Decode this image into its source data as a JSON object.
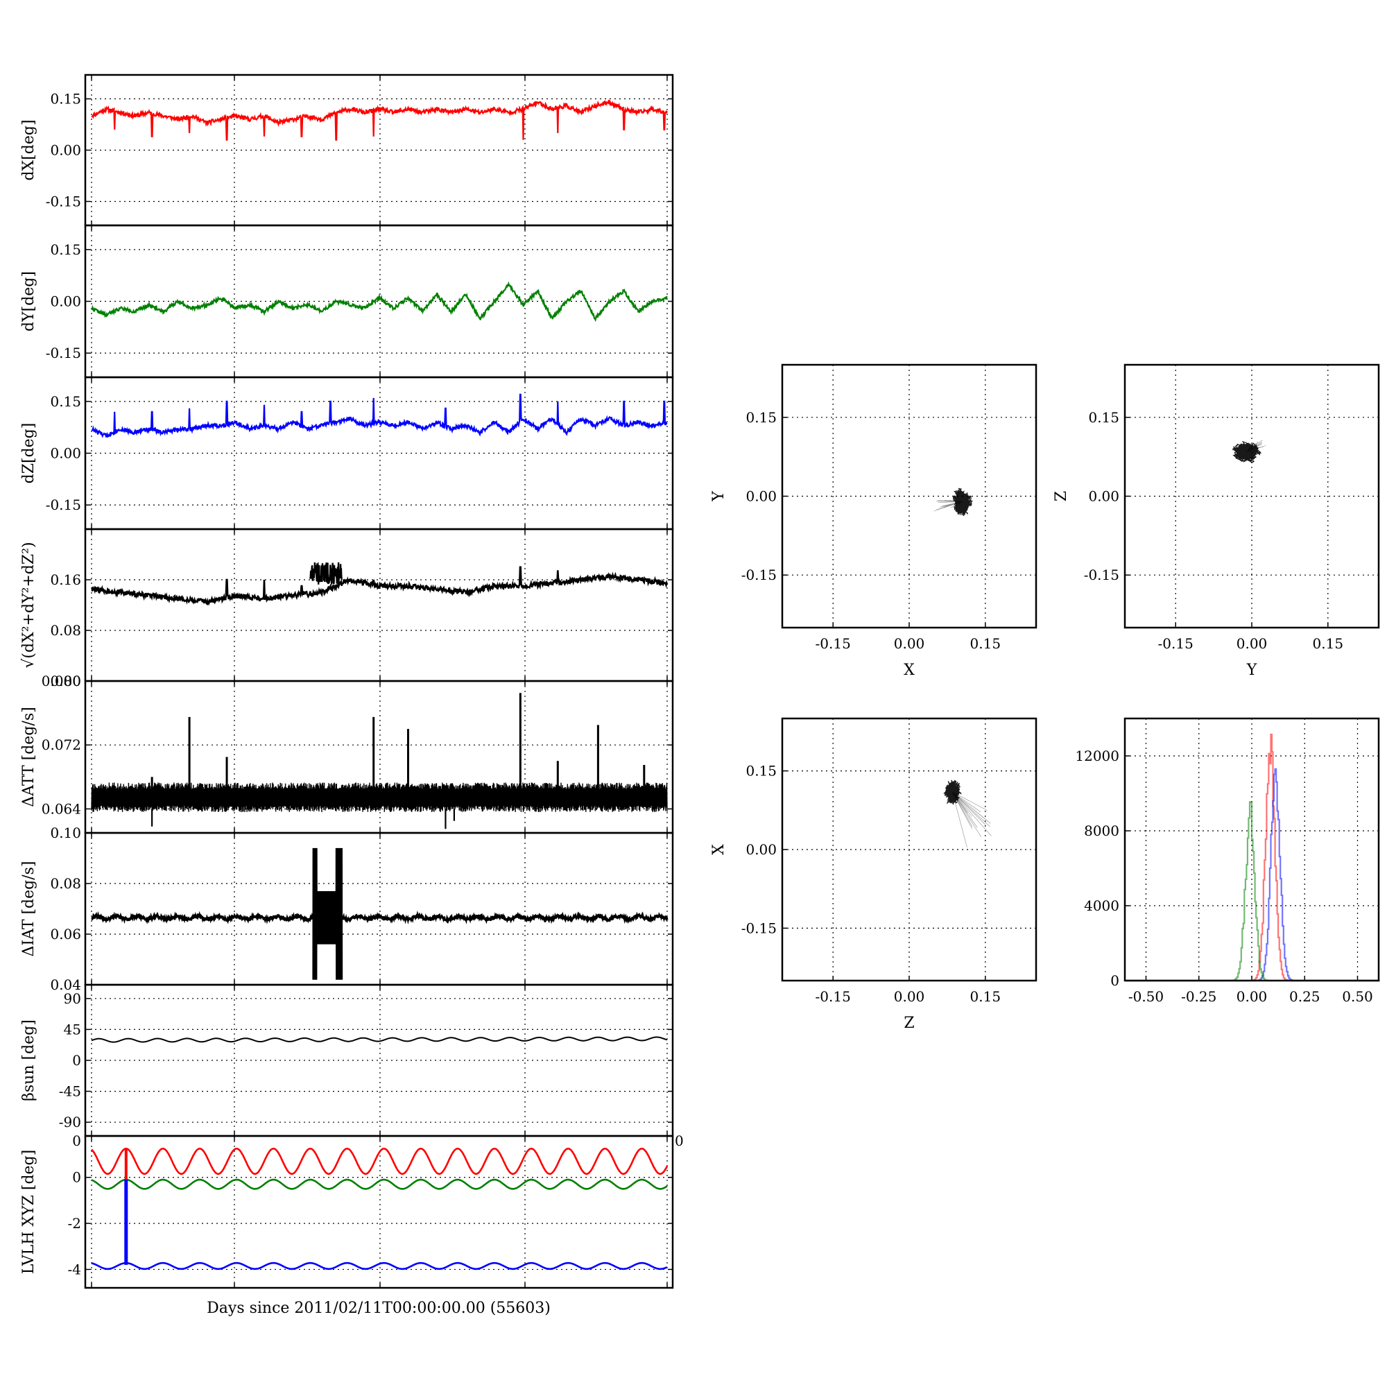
{
  "figure": {
    "xlabel": "Days since 2011/02/11T00:00:00.00 (55603)"
  },
  "chart_data": [
    {
      "id": "dx",
      "type": "line",
      "ylabel": "dX[deg]",
      "color": "#ff0000",
      "ylim": [
        -0.22,
        0.22
      ],
      "yticks": [
        "0.15",
        "0.00",
        "-0.15"
      ],
      "ytick_values": [
        0.15,
        0,
        -0.15
      ],
      "grid": true,
      "summary": {
        "baseline": 0.105,
        "range": [
          0.03,
          0.15
        ],
        "spikes_down_to": 0.03
      },
      "x": [
        0,
        0.5,
        1,
        1.5,
        2,
        2.5,
        3,
        3.5,
        4,
        4.5,
        5,
        5.5,
        6,
        6.5,
        7,
        7.5,
        8,
        8.5,
        9,
        9.5,
        10,
        10.5,
        11,
        11.5,
        12,
        12.5,
        13,
        13.5,
        14,
        14.5,
        15,
        15.5,
        16,
        16.5,
        17,
        17.5,
        18,
        18.5,
        19,
        19.5,
        20
      ],
      "y": [
        0.1,
        0.12,
        0.11,
        0.1,
        0.11,
        0.1,
        0.09,
        0.1,
        0.08,
        0.09,
        0.1,
        0.09,
        0.1,
        0.08,
        0.09,
        0.1,
        0.09,
        0.11,
        0.12,
        0.11,
        0.12,
        0.11,
        0.12,
        0.11,
        0.12,
        0.11,
        0.12,
        0.11,
        0.12,
        0.11,
        0.12,
        0.14,
        0.12,
        0.13,
        0.11,
        0.13,
        0.14,
        0.12,
        0.11,
        0.12,
        0.11
      ]
    },
    {
      "id": "dy",
      "type": "line",
      "ylabel": "dY[deg]",
      "color": "#008000",
      "ylim": [
        -0.22,
        0.22
      ],
      "yticks": [
        "0.15",
        "0.00",
        "-0.15"
      ],
      "ytick_values": [
        0.15,
        0,
        -0.15
      ],
      "grid": true,
      "summary": {
        "range": [
          -0.07,
          0.07
        ]
      },
      "x": [
        0,
        0.5,
        1,
        1.5,
        2,
        2.5,
        3,
        3.5,
        4,
        4.5,
        5,
        5.5,
        6,
        6.5,
        7,
        7.5,
        8,
        8.5,
        9,
        9.5,
        10,
        10.5,
        11,
        11.5,
        12,
        12.5,
        13,
        13.5,
        14,
        14.5,
        15,
        15.5,
        16,
        16.5,
        17,
        17.5,
        18,
        18.5,
        19,
        19.5,
        20
      ],
      "y": [
        -0.02,
        -0.04,
        -0.02,
        -0.03,
        -0.01,
        -0.03,
        0.0,
        -0.02,
        -0.01,
        0.01,
        -0.02,
        -0.01,
        -0.03,
        0.0,
        -0.02,
        -0.01,
        -0.03,
        0.0,
        -0.01,
        -0.02,
        0.01,
        -0.02,
        0.01,
        -0.03,
        0.02,
        -0.03,
        0.02,
        -0.05,
        0.0,
        0.05,
        -0.01,
        0.03,
        -0.05,
        0.0,
        0.03,
        -0.05,
        0.0,
        0.03,
        -0.03,
        0.0,
        0.01
      ]
    },
    {
      "id": "dz",
      "type": "line",
      "ylabel": "dZ[deg]",
      "color": "#0000ff",
      "ylim": [
        -0.22,
        0.22
      ],
      "yticks": [
        "0.15",
        "0.00",
        "-0.15"
      ],
      "ytick_values": [
        0.15,
        0,
        -0.15
      ],
      "grid": true,
      "summary": {
        "baseline": 0.07,
        "range": [
          0.04,
          0.17
        ],
        "spikes_up_to": 0.17
      },
      "x": [
        0,
        0.5,
        1,
        1.5,
        2,
        2.5,
        3,
        3.5,
        4,
        4.5,
        5,
        5.5,
        6,
        6.5,
        7,
        7.5,
        8,
        8.5,
        9,
        9.5,
        10,
        10.5,
        11,
        11.5,
        12,
        12.5,
        13,
        13.5,
        14,
        14.5,
        15,
        15.5,
        16,
        16.5,
        17,
        17.5,
        18,
        18.5,
        19,
        19.5,
        20
      ],
      "y": [
        0.07,
        0.05,
        0.07,
        0.06,
        0.07,
        0.06,
        0.07,
        0.07,
        0.08,
        0.08,
        0.09,
        0.07,
        0.08,
        0.07,
        0.09,
        0.07,
        0.08,
        0.09,
        0.1,
        0.08,
        0.09,
        0.08,
        0.09,
        0.07,
        0.09,
        0.07,
        0.08,
        0.06,
        0.09,
        0.06,
        0.1,
        0.07,
        0.1,
        0.06,
        0.1,
        0.08,
        0.1,
        0.08,
        0.09,
        0.08,
        0.09
      ]
    },
    {
      "id": "mag",
      "type": "line",
      "ylabel": "√(dX²+dY²+dZ²)",
      "color": "#000000",
      "ylim": [
        0.0,
        0.24
      ],
      "yticks": [
        "0.16",
        "0.08",
        "0.00"
      ],
      "ytick_values": [
        0.16,
        0.08,
        0.0
      ],
      "grid": true,
      "summary": {
        "range": [
          0.12,
          0.19
        ]
      },
      "x": [
        0,
        1,
        2,
        3,
        4,
        5,
        6,
        7,
        8,
        9,
        10,
        11,
        12,
        13,
        14,
        15,
        16,
        17,
        18,
        19,
        20
      ],
      "y": [
        0.145,
        0.14,
        0.135,
        0.13,
        0.125,
        0.135,
        0.13,
        0.135,
        0.14,
        0.16,
        0.15,
        0.15,
        0.145,
        0.14,
        0.15,
        0.15,
        0.155,
        0.16,
        0.165,
        0.16,
        0.155
      ]
    },
    {
      "id": "datt",
      "type": "line",
      "ylabel": "ΔATT [deg/s]",
      "color": "#000000",
      "ylim": [
        0.061,
        0.08
      ],
      "yticks": [
        "0.080",
        "0.072",
        "0.064"
      ],
      "ytick_values": [
        0.08,
        0.072,
        0.064
      ],
      "grid": true,
      "summary": {
        "baseline": 0.0655,
        "band": [
          0.0635,
          0.0665
        ],
        "spikes_up_to": 0.0785,
        "spikes_down_to": 0.0615
      },
      "x": [
        0,
        20
      ],
      "y": [
        0.0655,
        0.0655
      ]
    },
    {
      "id": "diat",
      "type": "line",
      "ylabel": "ΔIAT [deg/s]",
      "color": "#000000",
      "ylim": [
        0.04,
        0.1
      ],
      "yticks": [
        "0.10",
        "0.08",
        "0.06",
        "0.04"
      ],
      "ytick_values": [
        0.1,
        0.08,
        0.06,
        0.04
      ],
      "grid": true,
      "summary": {
        "baseline": 0.066,
        "burst_x": [
          7.7,
          8.7
        ],
        "burst_range": [
          0.042,
          0.094
        ]
      },
      "x": [
        0,
        20
      ],
      "y": [
        0.066,
        0.066
      ]
    },
    {
      "id": "beta",
      "type": "line",
      "ylabel": "βsun [deg]",
      "color": "#000000",
      "ylim": [
        -110,
        110
      ],
      "yticks": [
        "90",
        "45",
        "0",
        "-45",
        "-90"
      ],
      "ytick_values": [
        90,
        45,
        0,
        -45,
        -90
      ],
      "grid": true,
      "summary": {
        "mean": 30,
        "oscillation_amplitude": 2.5
      },
      "x": [
        0,
        20
      ],
      "y": [
        29,
        32
      ]
    },
    {
      "id": "lvlh",
      "type": "line",
      "ylabel": "LVLH XYZ [deg]",
      "color": "#000000",
      "ylim": [
        -4.8,
        1.8
      ],
      "yticks": [
        "0",
        "-2",
        "-4"
      ],
      "ytick_values": [
        0,
        -2,
        -4
      ],
      "extra_tick_labels": [
        "0",
        "0"
      ],
      "grid": true,
      "series": [
        {
          "color": "#ff0000",
          "mean": 0.7,
          "amplitude": 0.55
        },
        {
          "color": "#008000",
          "mean": -0.3,
          "amplitude": 0.2
        },
        {
          "color": "#0000ff",
          "mean": -3.85,
          "amplitude": 0.13
        }
      ],
      "annotations": {
        "vertical_jump_x": 1.2
      }
    },
    {
      "id": "xy",
      "type": "scatter",
      "xlabel": "X",
      "ylabel": "Y",
      "color": "#000000",
      "xlim": [
        -0.25,
        0.25
      ],
      "ylim": [
        -0.25,
        0.25
      ],
      "xticks": [
        "-0.15",
        "0.00",
        "0.15"
      ],
      "yticks": [
        "0.15",
        "0.00",
        "-0.15"
      ],
      "tick_values": [
        -0.15,
        0,
        0.15
      ],
      "grid": true,
      "cluster": {
        "center": [
          0.105,
          -0.01
        ],
        "spread": [
          0.025,
          0.035
        ]
      }
    },
    {
      "id": "yz",
      "type": "scatter",
      "xlabel": "Y",
      "ylabel": "Z",
      "color": "#000000",
      "xlim": [
        -0.25,
        0.25
      ],
      "ylim": [
        -0.25,
        0.25
      ],
      "xticks": [
        "-0.15",
        "0.00",
        "0.15"
      ],
      "yticks": [
        "0.15",
        "0.00",
        "-0.15"
      ],
      "tick_values": [
        -0.15,
        0,
        0.15
      ],
      "grid": true,
      "cluster": {
        "center": [
          -0.01,
          0.085
        ],
        "spread": [
          0.035,
          0.025
        ]
      }
    },
    {
      "id": "zx",
      "type": "scatter",
      "xlabel": "Z",
      "ylabel": "X",
      "color": "#000000",
      "xlim": [
        -0.25,
        0.25
      ],
      "ylim": [
        -0.25,
        0.25
      ],
      "xticks": [
        "-0.15",
        "0.00",
        "0.15"
      ],
      "yticks": [
        "0.15",
        "0.00",
        "-0.15"
      ],
      "tick_values": [
        -0.15,
        0,
        0.15
      ],
      "grid": true,
      "cluster": {
        "center": [
          0.085,
          0.11
        ],
        "spread": [
          0.02,
          0.03
        ]
      }
    },
    {
      "id": "hist",
      "type": "line",
      "xlim": [
        -0.6,
        0.6
      ],
      "ylim": [
        0,
        14000
      ],
      "xticks": [
        "-0.50",
        "-0.25",
        "0.00",
        "0.25",
        "0.50"
      ],
      "xtick_values": [
        -0.5,
        -0.25,
        0,
        0.25,
        0.5
      ],
      "yticks": [
        "12000",
        "8000",
        "4000",
        "0"
      ],
      "ytick_values": [
        12000,
        8000,
        4000,
        0
      ],
      "grid": true,
      "series": [
        {
          "color": "#ff0000",
          "peak_x": 0.085,
          "peak_y": 12400,
          "width": 0.022
        },
        {
          "color": "#0000ff",
          "peak_x": 0.11,
          "peak_y": 11400,
          "width": 0.022
        },
        {
          "color": "#008000",
          "peak_x": -0.01,
          "peak_y": 9100,
          "width": 0.022
        }
      ]
    }
  ]
}
